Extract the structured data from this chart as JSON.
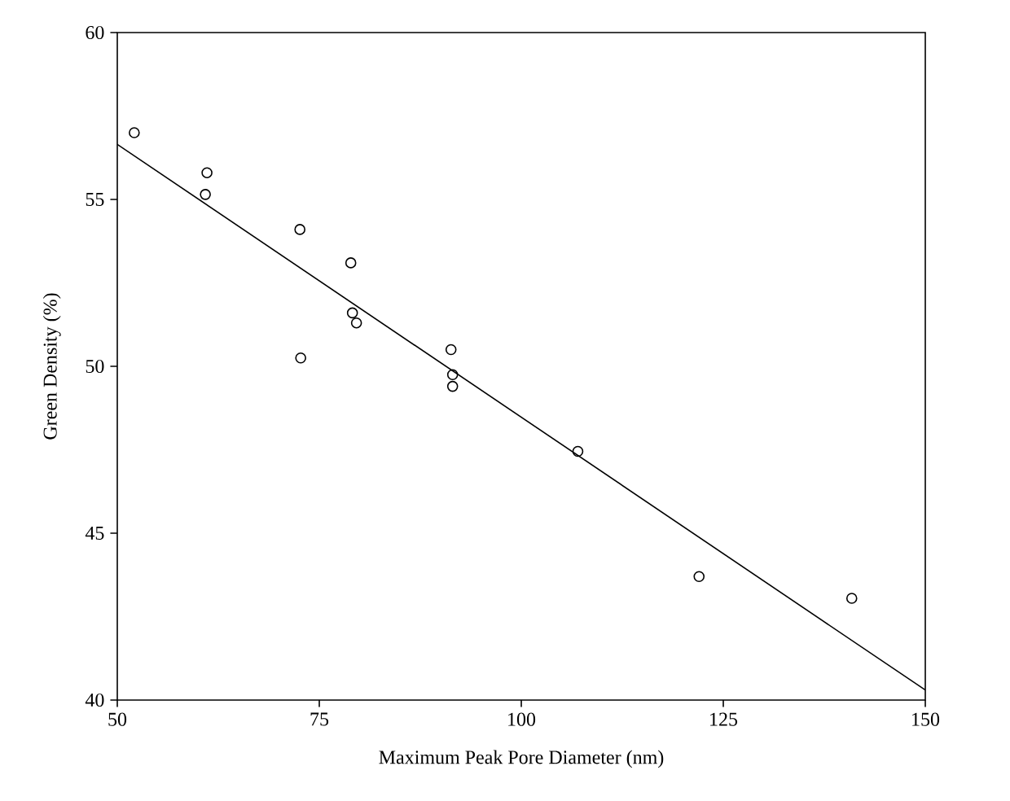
{
  "chart_data": {
    "type": "scatter",
    "xlabel": "Maximum Peak Pore Diameter (nm)",
    "ylabel": "Green Density (%)",
    "xlim": [
      50,
      150
    ],
    "ylim": [
      40,
      60
    ],
    "xticks": [
      50,
      75,
      100,
      125,
      150
    ],
    "yticks": [
      40,
      45,
      50,
      55,
      60
    ],
    "grid": false,
    "series": [
      {
        "marker": "circle",
        "color": "#000000",
        "x": [
          52.1,
          61.1,
          60.9,
          72.6,
          72.7,
          78.9,
          79.1,
          79.6,
          91.3,
          91.5,
          91.5,
          107.0,
          122.0,
          140.9
        ],
        "values": [
          57.0,
          55.8,
          55.15,
          54.1,
          50.25,
          53.1,
          51.6,
          51.3,
          50.5,
          49.75,
          49.4,
          47.45,
          43.7,
          43.05
        ]
      },
      {
        "type": "line",
        "marker": "none",
        "color": "#000000",
        "x": [
          50,
          150
        ],
        "values": [
          56.65,
          40.3
        ]
      }
    ]
  }
}
